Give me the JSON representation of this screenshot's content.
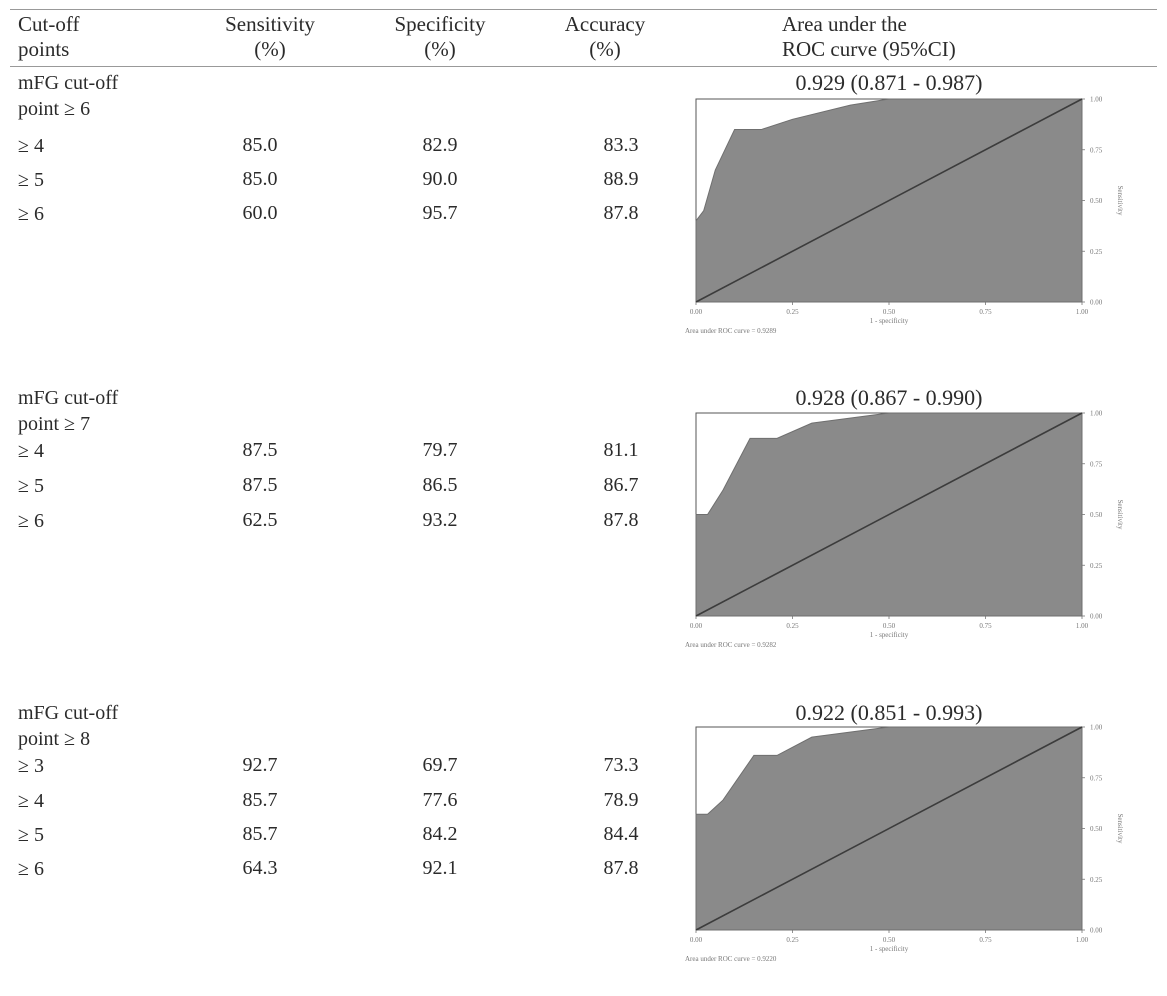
{
  "header": {
    "col1_line1": "Cut-off",
    "col1_line2": "points",
    "col2_line1": "Sensitivity",
    "col2_line2": "(%)",
    "col3_line1": "Specificity",
    "col3_line2": "(%)",
    "col4_line1": "Accuracy",
    "col4_line2": "(%)",
    "col5_line1": "Area under the",
    "col5_line2": "ROC curve (95%CI)"
  },
  "groups": [
    {
      "label_line1": "mFG cut-off",
      "label_line2": "point  ≥ 6",
      "auc": "0.929 (0.871 - 0.987)",
      "rows": [
        {
          "cut": "≥ 4",
          "sens": "85.0",
          "spec": "82.9",
          "acc": "83.3"
        },
        {
          "cut": "≥ 5",
          "sens": "85.0",
          "spec": "90.0",
          "acc": "88.9"
        },
        {
          "cut": "≥ 6",
          "sens": "60.0",
          "spec": "95.7",
          "acc": "87.8"
        }
      ],
      "roc_caption": "Area under ROC curve = 0.9289"
    },
    {
      "label_line1": "mFG cut-off",
      "label_line2": "point  ≥ 7",
      "auc": "0.928 (0.867 - 0.990)",
      "rows": [
        {
          "cut": "≥ 4",
          "sens": "87.5",
          "spec": "79.7",
          "acc": "81.1"
        },
        {
          "cut": "≥ 5",
          "sens": "87.5",
          "spec": "86.5",
          "acc": "86.7"
        },
        {
          "cut": "≥ 6",
          "sens": "62.5",
          "spec": "93.2",
          "acc": "87.8"
        }
      ],
      "roc_caption": "Area under ROC curve = 0.9282"
    },
    {
      "label_line1": "mFG cut-off",
      "label_line2": "point ≥ 8",
      "auc": "0.922 (0.851 - 0.993)",
      "rows": [
        {
          "cut": "≥ 3",
          "sens": "92.7",
          "spec": "69.7",
          "acc": "73.3"
        },
        {
          "cut": "≥ 4",
          "sens": "85.7",
          "spec": "77.6",
          "acc": "78.9"
        },
        {
          "cut": "≥ 5",
          "sens": "85.7",
          "spec": "84.2",
          "acc": "84.4"
        },
        {
          "cut": "≥ 6",
          "sens": "64.3",
          "spec": "92.1",
          "acc": "87.8"
        }
      ],
      "roc_caption": "Area under ROC curve = 0.9220"
    }
  ],
  "chart_data": [
    {
      "type": "area",
      "xlabel": "1 - specificity",
      "ylabel": "Sensitivity",
      "xlim": [
        0,
        1
      ],
      "ylim": [
        0,
        1
      ],
      "xticks": [
        "0.00",
        "0.25",
        "0.50",
        "0.75",
        "1.00"
      ],
      "yticks": [
        "0.00",
        "0.25",
        "0.50",
        "0.75",
        "1.00"
      ],
      "fill_color": "#8a8a8a",
      "x": [
        0,
        0,
        0.02,
        0.05,
        0.1,
        0.17,
        0.25,
        0.4,
        0.5,
        1.0
      ],
      "y": [
        0,
        0.4,
        0.45,
        0.65,
        0.85,
        0.85,
        0.9,
        0.97,
        1.0,
        1.0
      ]
    },
    {
      "type": "area",
      "xlabel": "1 - specificity",
      "ylabel": "Sensitivity",
      "xlim": [
        0,
        1
      ],
      "ylim": [
        0,
        1
      ],
      "xticks": [
        "0.00",
        "0.25",
        "0.50",
        "0.75",
        "1.00"
      ],
      "yticks": [
        "0.00",
        "0.25",
        "0.50",
        "0.75",
        "1.00"
      ],
      "fill_color": "#8a8a8a",
      "x": [
        0,
        0,
        0.03,
        0.07,
        0.14,
        0.21,
        0.3,
        0.5,
        1.0
      ],
      "y": [
        0,
        0.5,
        0.5,
        0.62,
        0.875,
        0.875,
        0.95,
        1.0,
        1.0
      ],
      "__note": ""
    },
    {
      "type": "area",
      "xlabel": "1 - specificity",
      "ylabel": "Sensitivity",
      "xlim": [
        0,
        1
      ],
      "ylim": [
        0,
        1
      ],
      "xticks": [
        "0.00",
        "0.25",
        "0.50",
        "0.75",
        "1.00"
      ],
      "yticks": [
        "0.00",
        "0.25",
        "0.50",
        "0.75",
        "1.00"
      ],
      "fill_color": "#8a8a8a",
      "x": [
        0,
        0,
        0.03,
        0.07,
        0.15,
        0.21,
        0.3,
        0.5,
        1.0
      ],
      "y": [
        0,
        0.57,
        0.57,
        0.64,
        0.86,
        0.86,
        0.95,
        1.0,
        1.0
      ]
    }
  ]
}
